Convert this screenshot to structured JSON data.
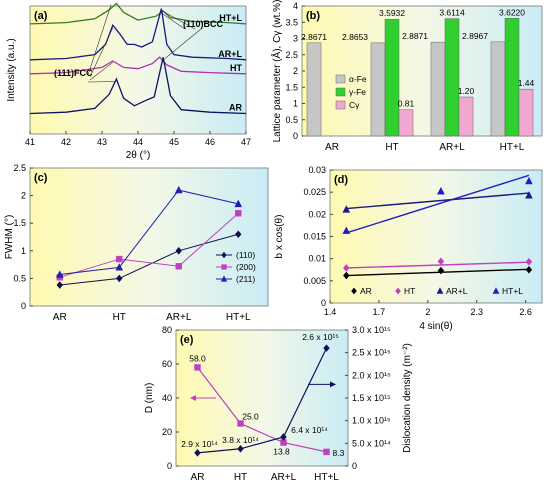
{
  "chart_data": [
    {
      "panel": "(a)",
      "type": "line",
      "xlabel": "2θ (°)",
      "ylabel": "Intensity (a.u.)",
      "xlim": [
        41,
        47
      ],
      "xticks": [
        "41",
        "42",
        "43",
        "44",
        "45",
        "46",
        "47"
      ],
      "peak_labels": [
        "(110)BCC",
        "(111)FCC"
      ],
      "series": [
        {
          "name": "HT+L",
          "color": "#2e7d1e",
          "base": 0.86,
          "x": [
            41,
            42,
            42.8,
            43.2,
            43.4,
            43.6,
            44.0,
            44.5,
            44.7,
            44.9,
            45.5,
            46.5,
            47
          ],
          "y": [
            0,
            0.01,
            0.04,
            0.11,
            0.16,
            0.09,
            0.03,
            0.06,
            0.1,
            0.05,
            0.02,
            0.01,
            0
          ]
        },
        {
          "name": "AR+L",
          "color": "#1a1a80",
          "base": 0.58,
          "x": [
            41,
            42,
            42.8,
            43.1,
            43.3,
            43.5,
            43.7,
            43.9,
            44.1,
            44.4,
            44.65,
            44.8,
            45.0,
            45.5,
            46.5,
            47
          ],
          "y": [
            0,
            0.01,
            0.04,
            0.12,
            0.27,
            0.2,
            0.12,
            0.12,
            0.1,
            0.14,
            0.4,
            0.12,
            0.04,
            0.02,
            0.01,
            0
          ]
        },
        {
          "name": "HT",
          "color": "#b030b0",
          "base": 0.47,
          "x": [
            41,
            42,
            43.0,
            43.3,
            43.6,
            44.0,
            44.4,
            44.6,
            44.8,
            45.2,
            46.0,
            47
          ],
          "y": [
            0,
            0.01,
            0.05,
            0.1,
            0.05,
            0.04,
            0.08,
            0.13,
            0.07,
            0.02,
            0.01,
            0
          ]
        },
        {
          "name": "AR",
          "color": "#101060",
          "base": 0.16,
          "x": [
            41,
            42,
            42.8,
            43.2,
            43.4,
            43.6,
            43.9,
            44.2,
            44.45,
            44.7,
            44.9,
            45.2,
            46.0,
            47
          ],
          "y": [
            0,
            0.01,
            0.04,
            0.15,
            0.27,
            0.12,
            0.06,
            0.1,
            0.13,
            0.44,
            0.14,
            0.03,
            0.01,
            0
          ]
        }
      ]
    },
    {
      "panel": "(b)",
      "type": "bar",
      "ylabel": "Lattice parameter (Å), Cγ (wt.%)",
      "ylim": [
        0,
        4
      ],
      "yticks": [
        "0",
        "0.5",
        "1",
        "1.5",
        "2",
        "2.5",
        "3",
        "3.5",
        "4"
      ],
      "categories": [
        "AR",
        "HT",
        "AR+L",
        "HT+L"
      ],
      "series": [
        {
          "name": "α-Fe",
          "color": "#c6c6c6",
          "values": [
            2.8671,
            2.8653,
            2.8871,
            2.8967
          ],
          "labels": [
            "2.8671",
            "2.8653",
            "2.8871",
            "2.8967"
          ]
        },
        {
          "name": "γ-Fe",
          "color": "#2fcf2f",
          "values": [
            null,
            3.5932,
            3.6114,
            3.622
          ],
          "labels": [
            "",
            "3.5932",
            "3.6114",
            "3.6220"
          ]
        },
        {
          "name": "Cγ",
          "color": "#f0a8d0",
          "values": [
            null,
            0.81,
            1.2,
            1.44
          ],
          "labels": [
            "",
            "0.81",
            "1.20",
            "1.44"
          ]
        }
      ]
    },
    {
      "panel": "(c)",
      "type": "line",
      "ylabel": "FWHM (°)",
      "ylim": [
        0,
        2.5
      ],
      "yticks": [
        "0",
        "0.5",
        "1",
        "1.5",
        "2",
        "2.5"
      ],
      "categories": [
        "AR",
        "HT",
        "AR+L",
        "HT+L"
      ],
      "series": [
        {
          "name": "(110)",
          "color": "#101050",
          "marker": "diamond",
          "values": [
            0.38,
            0.5,
            1.0,
            1.3
          ]
        },
        {
          "name": "(200)",
          "color": "#c040c0",
          "marker": "square",
          "values": [
            0.52,
            0.85,
            0.72,
            1.68
          ]
        },
        {
          "name": "(211)",
          "color": "#2020b0",
          "marker": "triangle",
          "values": [
            0.57,
            0.7,
            2.1,
            1.85
          ]
        }
      ]
    },
    {
      "panel": "(d)",
      "type": "scatter",
      "xlabel": "4 sin(θ)",
      "ylabel": "b x cos(θ)",
      "xlim": [
        1.4,
        2.7
      ],
      "ylim": [
        0,
        0.03
      ],
      "xticks": [
        "1.4",
        "1.7",
        "2",
        "2.3",
        "2.6"
      ],
      "yticks": [
        "0",
        "0.005",
        "0.01",
        "0.015",
        "0.02",
        "0.025",
        "0.03"
      ],
      "series": [
        {
          "name": "AR",
          "color": "#000000",
          "marker": "diamond",
          "x": [
            1.5,
            2.08,
            2.62
          ],
          "y": [
            0.0062,
            0.0073,
            0.0075
          ],
          "fit": [
            0.0062,
            0.0076
          ]
        },
        {
          "name": "HT",
          "color": "#c040c0",
          "marker": "diamond",
          "x": [
            1.5,
            2.08,
            2.62
          ],
          "y": [
            0.0079,
            0.0094,
            0.0093
          ],
          "fit": [
            0.0079,
            0.0092
          ]
        },
        {
          "name": "AR+L",
          "color": "#1a1a80",
          "marker": "triangle",
          "x": [
            1.5,
            2.08,
            2.62
          ],
          "y": [
            0.0211,
            0.0252,
            0.0243
          ],
          "fit": [
            0.0213,
            0.0248
          ]
        },
        {
          "name": "HT+L",
          "color": "#2020c0",
          "marker": "triangle",
          "x": [
            1.5,
            2.08,
            2.62
          ],
          "y": [
            0.0163,
            0.0252,
            0.0275
          ],
          "fit": [
            0.0158,
            0.0288
          ]
        }
      ]
    },
    {
      "panel": "(e)",
      "type": "line",
      "ylabel": "D (nm)",
      "ylabel_right": "Dislocation density (m⁻²)",
      "ylim": [
        0,
        80
      ],
      "ylim_right": [
        0,
        3000000000000000.0
      ],
      "yticks": [
        "0",
        "20",
        "40",
        "60",
        "80"
      ],
      "yticks_right": [
        "0",
        "5.0 x 10¹⁴",
        "1.0 x 10¹⁵",
        "1.5 x 10¹⁵",
        "2.0 x 10¹⁵",
        "2.5 x 10¹⁵",
        "3.0 x 10¹⁵"
      ],
      "categories": [
        "AR",
        "HT",
        "AR+L",
        "HT+L"
      ],
      "series": [
        {
          "name": "D",
          "axis": "left",
          "color": "#c040c0",
          "marker": "square",
          "values": [
            58.0,
            25.0,
            13.8,
            8.3
          ],
          "labels": [
            "58.0",
            "25.0",
            "13.8",
            "8.3"
          ]
        },
        {
          "name": "Dislocation density",
          "axis": "right",
          "color": "#101060",
          "marker": "diamond",
          "values": [
            290000000000000.0,
            380000000000000.0,
            640000000000000.0,
            2600000000000000.0
          ],
          "labels": [
            "2.9 x 10¹⁴",
            "3.8 x 10¹⁴",
            "6.4 x 10¹⁴",
            "2.6 x 10¹⁵"
          ]
        }
      ]
    }
  ]
}
